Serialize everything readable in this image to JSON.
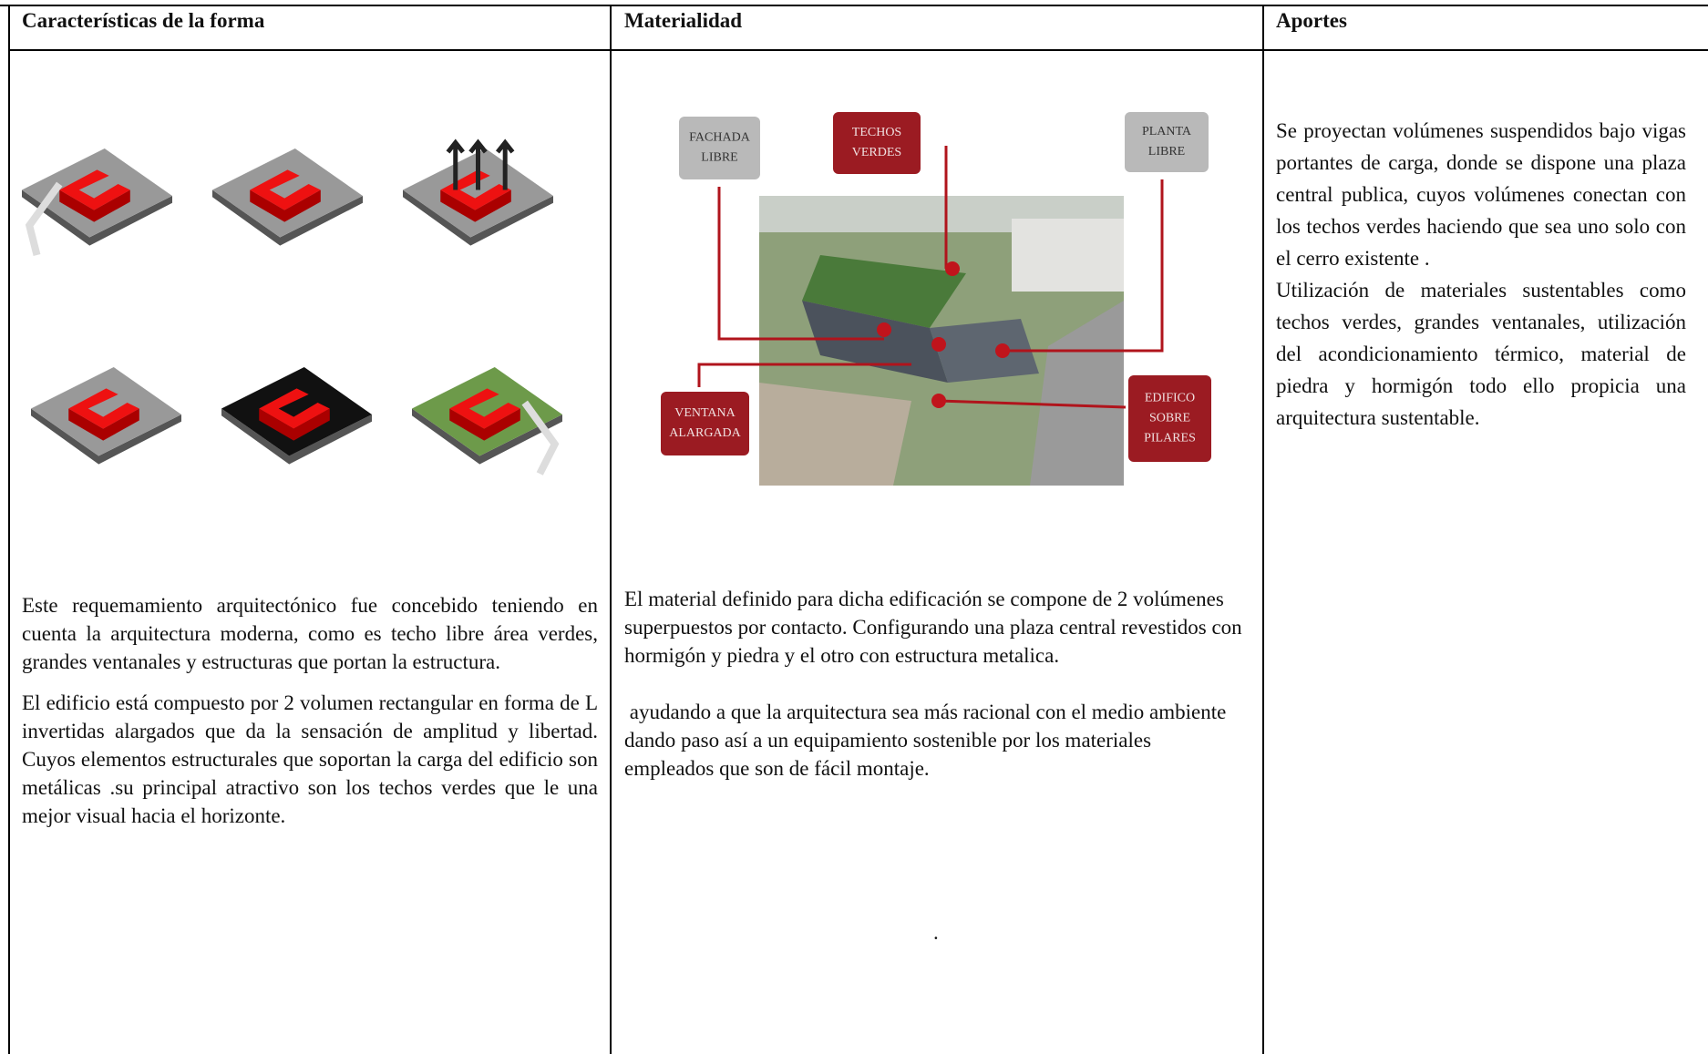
{
  "table": {
    "headers": [
      "Características de la forma",
      "Materialidad",
      "Aportes"
    ],
    "cells": [
      {
        "paragraphs": [
          "Este requemamiento arquitectónico fue concebido teniendo en cuenta la arquitectura moderna, como es techo libre área verdes, grandes ventanales y estructuras que portan la estructura.",
          "El edificio está compuesto por 2 volumen rectangular en forma de L invertidas alargados que da la sensación de amplitud y libertad. Cuyos elementos estructurales que soportan la carga del edificio son metálicas .su principal atractivo son los techos verdes que le una mejor visual hacia el horizonte."
        ]
      },
      {
        "diagram_labels": [
          {
            "lines": [
              "FACHADA",
              "LIBRE"
            ]
          },
          {
            "lines": [
              "TECHOS",
              "VERDES"
            ]
          },
          {
            "lines": [
              "PLANTA",
              "LIBRE"
            ]
          },
          {
            "lines": [
              "VENTANA",
              "ALARGADA"
            ]
          },
          {
            "lines": [
              "EDIFICO",
              "SOBRE",
              "PILARES"
            ]
          }
        ],
        "paragraphs": [
          "El material definido para dicha edificación se compone de 2 volúmenes superpuestos por contacto. Configurando una plaza central revestidos con hormigón y piedra y el otro con estructura metalica.",
          " ayudando a que la arquitectura sea más racional con el medio ambiente dando paso así a un equipamiento sostenible por los materiales empleados que son de fácil montaje."
        ],
        "footnote": "."
      },
      {
        "paragraphs": [
          "Se proyectan volúmenes suspendidos bajo vigas portantes de carga, donde se dispone una plaza central publica, cuyos volúmenes conectan con los techos verdes haciendo que sea uno solo con el cerro existente .",
          "Utilización de materiales sustentables como techos verdes, grandes ventanales, utilización del acondicionamiento térmico, material de piedra y hormigón todo ello propicia una arquitectura sustentable."
        ]
      }
    ]
  }
}
